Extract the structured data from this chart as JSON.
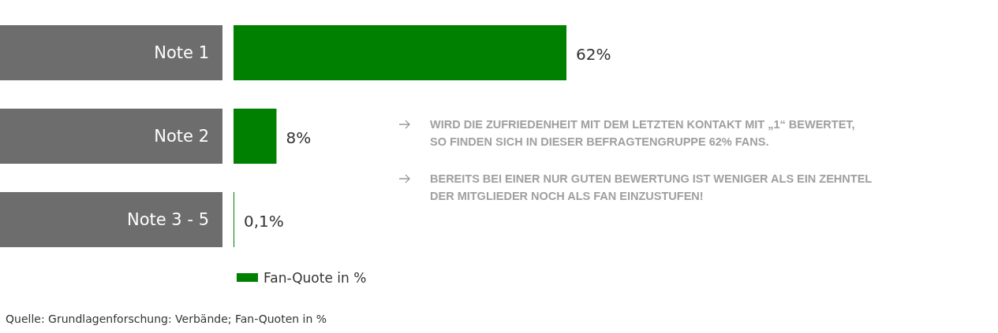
{
  "chart_data": {
    "type": "bar",
    "orientation": "horizontal",
    "categories": [
      "Note 1",
      "Note 2",
      "Note 3 - 5"
    ],
    "series": [
      {
        "name": "Fan-Quote in %",
        "color": "#008000",
        "values": [
          62,
          8,
          0.1
        ],
        "value_labels": [
          "62%",
          "8%",
          "0,1%"
        ]
      }
    ],
    "legend": "bottom",
    "annotations": [
      "WIRD DIE ZUFRIEDENHEIT MIT DEM LETZTEN KONTAKT MIT „1“ BEWERTET, SO FINDEN SICH IN DIESER BEFRAGTENGRUPPE 62% FANS.",
      "BEREITS BEI EINER NUR GUTEN BEWERTUNG IST WENIGER ALS EIN ZEHNTEL DER MITGLIEDER NOCH ALS FAN EINZUSTUFEN!",
      "Quelle: Grundlagenforschung: Verbände; Fan-Quoten in %"
    ]
  }
}
